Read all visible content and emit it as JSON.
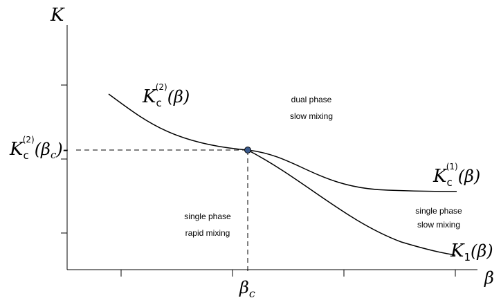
{
  "axes": {
    "y_label": "K",
    "x_label": "β"
  },
  "point": {
    "x_label": "β",
    "x_label_sub": "c",
    "y_label_main": "K",
    "y_label_sub": "c",
    "y_label_sup": "(2)",
    "y_label_arg_open": "(β",
    "y_label_arg_sub": "c",
    "y_label_arg_close": ")-"
  },
  "curves": {
    "kc2": {
      "main": "K",
      "sub": "c",
      "sup": "(2)",
      "arg": "(β)"
    },
    "kc1": {
      "main": "K",
      "sub": "c",
      "sup": "(1)",
      "arg": "(β)"
    },
    "k1": {
      "main": "K",
      "sub": "1",
      "arg": "(β)"
    }
  },
  "regions": {
    "dual_slow": [
      "dual phase",
      "slow mixing"
    ],
    "single_rapid": [
      "single phase",
      "rapid mixing"
    ],
    "single_slow": [
      "single phase",
      "slow mixing"
    ]
  },
  "colors": {
    "point_fill": "#3a5a8c",
    "line": "#000000"
  }
}
